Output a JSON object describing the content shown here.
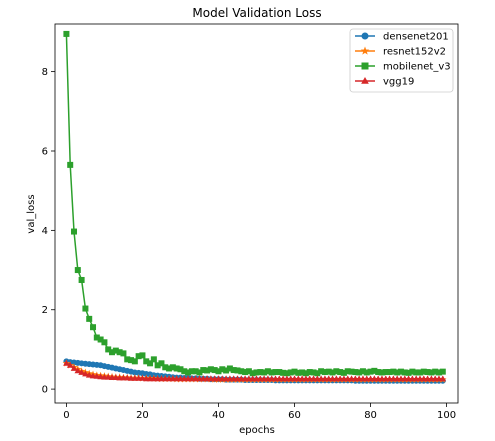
{
  "chart_data": {
    "type": "line",
    "title": "Model Validation Loss",
    "xlabel": "epochs",
    "ylabel": "val_loss",
    "xlim": [
      -3,
      103
    ],
    "ylim": [
      -0.35,
      9.2
    ],
    "xticks": [
      0,
      20,
      40,
      60,
      80,
      100
    ],
    "yticks": [
      0,
      2,
      4,
      6,
      8
    ],
    "legend_position": "top-right",
    "series": [
      {
        "name": "densenet201",
        "color": "#1f77b4",
        "marker": "circle",
        "values": [
          0.7,
          0.68,
          0.67,
          0.66,
          0.65,
          0.64,
          0.63,
          0.62,
          0.61,
          0.6,
          0.58,
          0.56,
          0.54,
          0.52,
          0.5,
          0.48,
          0.46,
          0.44,
          0.42,
          0.41,
          0.4,
          0.38,
          0.37,
          0.35,
          0.34,
          0.33,
          0.32,
          0.31,
          0.3,
          0.29,
          0.29,
          0.28,
          0.28,
          0.27,
          0.27,
          0.26,
          0.26,
          0.26,
          0.25,
          0.25,
          0.25,
          0.25,
          0.24,
          0.24,
          0.24,
          0.24,
          0.24,
          0.23,
          0.23,
          0.23,
          0.23,
          0.23,
          0.23,
          0.23,
          0.23,
          0.22,
          0.22,
          0.22,
          0.22,
          0.22,
          0.22,
          0.22,
          0.22,
          0.22,
          0.22,
          0.22,
          0.22,
          0.22,
          0.22,
          0.22,
          0.22,
          0.22,
          0.22,
          0.22,
          0.22,
          0.22,
          0.21,
          0.21,
          0.21,
          0.21,
          0.21,
          0.21,
          0.21,
          0.21,
          0.21,
          0.21,
          0.21,
          0.21,
          0.21,
          0.21,
          0.21,
          0.21,
          0.21,
          0.21,
          0.21,
          0.21,
          0.21,
          0.21,
          0.21,
          0.21
        ]
      },
      {
        "name": "resnet152v2",
        "color": "#ff7f0e",
        "marker": "star",
        "values": [
          0.65,
          0.6,
          0.55,
          0.5,
          0.45,
          0.42,
          0.39,
          0.37,
          0.35,
          0.34,
          0.33,
          0.32,
          0.31,
          0.3,
          0.3,
          0.29,
          0.29,
          0.28,
          0.28,
          0.28,
          0.27,
          0.27,
          0.27,
          0.27,
          0.26,
          0.26,
          0.26,
          0.26,
          0.26,
          0.25,
          0.25,
          0.25,
          0.25,
          0.25,
          0.25,
          0.25,
          0.25,
          0.25,
          0.25,
          0.24,
          0.24,
          0.24,
          0.24,
          0.24,
          0.24,
          0.24,
          0.24,
          0.24,
          0.24,
          0.24,
          0.24,
          0.24,
          0.24,
          0.24,
          0.24,
          0.24,
          0.24,
          0.24,
          0.24,
          0.24,
          0.24,
          0.24,
          0.24,
          0.24,
          0.24,
          0.24,
          0.24,
          0.24,
          0.24,
          0.24,
          0.24,
          0.24,
          0.24,
          0.24,
          0.24,
          0.24,
          0.24,
          0.24,
          0.24,
          0.24,
          0.24,
          0.24,
          0.24,
          0.24,
          0.24,
          0.24,
          0.24,
          0.24,
          0.24,
          0.24,
          0.24,
          0.24,
          0.24,
          0.24,
          0.24,
          0.24,
          0.24,
          0.24,
          0.24,
          0.24
        ]
      },
      {
        "name": "mobilenet_v3",
        "color": "#2ca02c",
        "marker": "square",
        "values": [
          8.95,
          5.65,
          3.97,
          3.0,
          2.75,
          2.03,
          1.77,
          1.56,
          1.3,
          1.25,
          1.18,
          1.0,
          0.93,
          0.97,
          0.93,
          0.9,
          0.75,
          0.73,
          0.7,
          0.83,
          0.85,
          0.7,
          0.65,
          0.75,
          0.6,
          0.65,
          0.55,
          0.52,
          0.55,
          0.52,
          0.5,
          0.45,
          0.42,
          0.45,
          0.45,
          0.42,
          0.48,
          0.47,
          0.5,
          0.48,
          0.45,
          0.5,
          0.47,
          0.52,
          0.48,
          0.47,
          0.45,
          0.43,
          0.45,
          0.4,
          0.42,
          0.43,
          0.42,
          0.45,
          0.42,
          0.43,
          0.43,
          0.41,
          0.4,
          0.42,
          0.44,
          0.41,
          0.42,
          0.4,
          0.43,
          0.42,
          0.4,
          0.45,
          0.43,
          0.44,
          0.42,
          0.45,
          0.43,
          0.41,
          0.45,
          0.44,
          0.43,
          0.42,
          0.45,
          0.42,
          0.44,
          0.46,
          0.43,
          0.42,
          0.43,
          0.43,
          0.44,
          0.42,
          0.44,
          0.42,
          0.41,
          0.44,
          0.42,
          0.42,
          0.44,
          0.43,
          0.42,
          0.44,
          0.42,
          0.44
        ]
      },
      {
        "name": "vgg19",
        "color": "#d62728",
        "marker": "triangle",
        "values": [
          0.65,
          0.6,
          0.52,
          0.46,
          0.42,
          0.38,
          0.35,
          0.33,
          0.32,
          0.31,
          0.3,
          0.3,
          0.29,
          0.29,
          0.28,
          0.28,
          0.28,
          0.27,
          0.27,
          0.27,
          0.27,
          0.26,
          0.26,
          0.26,
          0.26,
          0.26,
          0.26,
          0.26,
          0.26,
          0.26,
          0.26,
          0.26,
          0.26,
          0.26,
          0.26,
          0.26,
          0.26,
          0.26,
          0.26,
          0.26,
          0.26,
          0.26,
          0.26,
          0.26,
          0.26,
          0.26,
          0.26,
          0.26,
          0.26,
          0.26,
          0.26,
          0.26,
          0.26,
          0.26,
          0.26,
          0.26,
          0.26,
          0.26,
          0.26,
          0.26,
          0.26,
          0.26,
          0.26,
          0.26,
          0.26,
          0.26,
          0.26,
          0.26,
          0.26,
          0.26,
          0.26,
          0.26,
          0.26,
          0.26,
          0.26,
          0.26,
          0.26,
          0.26,
          0.26,
          0.26,
          0.26,
          0.26,
          0.26,
          0.26,
          0.26,
          0.26,
          0.26,
          0.26,
          0.26,
          0.26,
          0.26,
          0.26,
          0.26,
          0.26,
          0.26,
          0.26,
          0.26,
          0.26,
          0.26,
          0.26
        ]
      }
    ]
  }
}
